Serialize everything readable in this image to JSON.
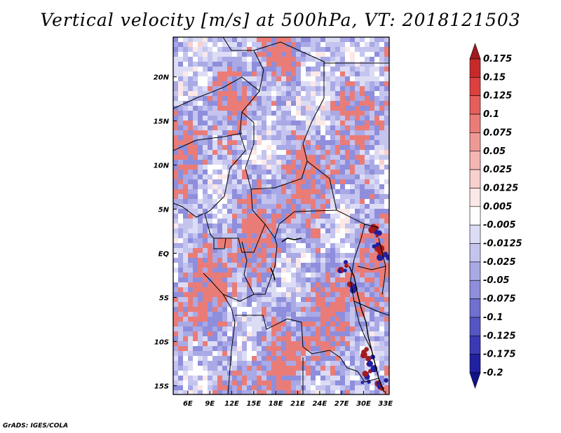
{
  "title": "Vertical velocity [m/s] at 500hPa, VT: 2018121503",
  "credit": "GrADS: IGES/COLA",
  "map": {
    "lon_ticks": [
      "6E",
      "9E",
      "12E",
      "15E",
      "18E",
      "21E",
      "24E",
      "27E",
      "30E",
      "33E"
    ],
    "lat_ticks": [
      "20N",
      "15N",
      "10N",
      "5N",
      "EQ",
      "5S",
      "10S",
      "15S"
    ],
    "lon_values": [
      6,
      9,
      12,
      15,
      18,
      21,
      24,
      27,
      30,
      33
    ],
    "lat_values": [
      20,
      15,
      10,
      5,
      0,
      -5,
      -10,
      -15
    ],
    "lon_range": [
      4,
      33.5
    ],
    "lat_range": [
      -16,
      24.5
    ]
  },
  "colorbar": {
    "labels": [
      "0.175",
      "0.15",
      "0.125",
      "0.1",
      "0.075",
      "0.05",
      "0.025",
      "0.0125",
      "0.005",
      "-0.005",
      "-0.0125",
      "-0.025",
      "-0.05",
      "-0.075",
      "-0.1",
      "-0.125",
      "-0.175",
      "-0.2"
    ],
    "colors": [
      "#a31a1e",
      "#c72a2a",
      "#dd4040",
      "#e45f5c",
      "#ea7c78",
      "#ef9995",
      "#f4b6b2",
      "#f8d0cd",
      "#fce8e6",
      "#ffffff",
      "#dcdcf5",
      "#c4c4ef",
      "#a9a9e6",
      "#8e8edc",
      "#7070d0",
      "#5555c4",
      "#3a3ab6",
      "#2020a0",
      "#12128a"
    ]
  }
}
